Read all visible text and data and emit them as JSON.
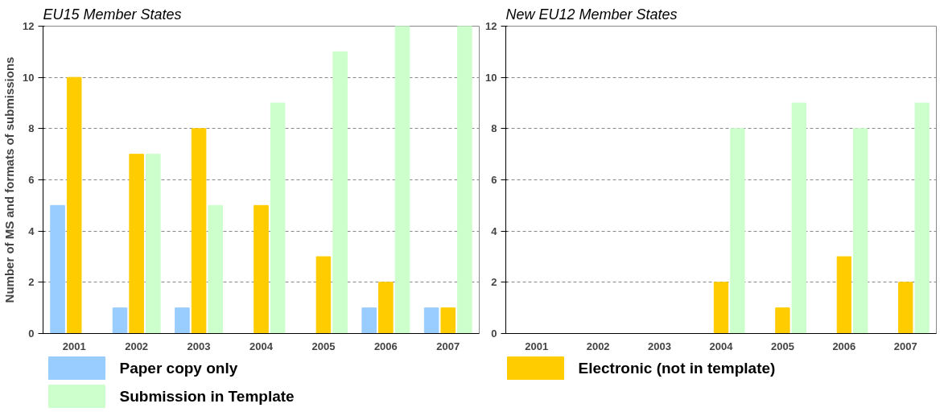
{
  "chart_data": [
    {
      "type": "bar",
      "title": "EU15 Member States",
      "ylabel": "Number of MS and formats of submissions",
      "categories": [
        "2001",
        "2002",
        "2003",
        "2004",
        "2005",
        "2006",
        "2007"
      ],
      "ylim": [
        0,
        12
      ],
      "yticks": [
        0,
        2,
        4,
        6,
        8,
        10,
        12
      ],
      "grid": "y",
      "legend": "bottom",
      "series": [
        {
          "name": "Paper copy only",
          "color": "#99ccff",
          "values": [
            5,
            1,
            1,
            0,
            0,
            1,
            1
          ]
        },
        {
          "name": "Electronic (not in template)",
          "color": "#ffcc00",
          "values": [
            10,
            7,
            8,
            5,
            3,
            2,
            1
          ]
        },
        {
          "name": "Submission in Template",
          "color": "#ccffcc",
          "values": [
            0,
            7,
            5,
            9,
            11,
            12,
            12
          ]
        }
      ]
    },
    {
      "type": "bar",
      "title": "New EU12 Member States",
      "categories": [
        "2001",
        "2002",
        "2003",
        "2004",
        "2005",
        "2006",
        "2007"
      ],
      "ylim": [
        0,
        12
      ],
      "yticks": [
        0,
        2,
        4,
        6,
        8,
        10,
        12
      ],
      "grid": "y",
      "series": [
        {
          "color": "#99ccff",
          "values": [
            0,
            0,
            0,
            0,
            0,
            0,
            0
          ]
        },
        {
          "color": "#ffcc00",
          "values": [
            0,
            0,
            0,
            2,
            1,
            3,
            2
          ]
        },
        {
          "color": "#ccffcc",
          "values": [
            0,
            0,
            0,
            8,
            9,
            8,
            9
          ]
        }
      ]
    }
  ]
}
